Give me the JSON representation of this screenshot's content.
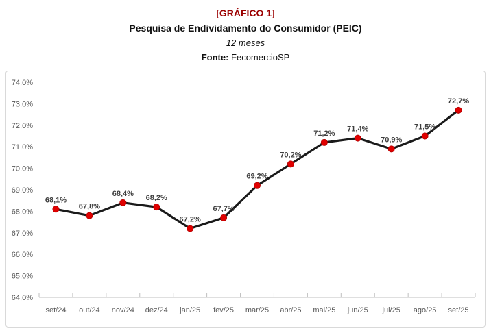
{
  "header": {
    "tag": "[GRÁFICO 1]",
    "title": "Pesquisa de Endividamento do Consumidor (PEIC)",
    "subtitle": "12 meses",
    "source_label": "Fonte:",
    "source_value": " FecomercioSP"
  },
  "chart_data": {
    "type": "line",
    "title": "Pesquisa de Endividamento do Consumidor (PEIC) - 12 meses",
    "categories": [
      "set/24",
      "out/24",
      "nov/24",
      "dez/24",
      "jan/25",
      "fev/25",
      "mar/25",
      "abr/25",
      "mai/25",
      "jun/25",
      "jul/25",
      "ago/25",
      "set/25"
    ],
    "values": [
      68.1,
      67.8,
      68.4,
      68.2,
      67.2,
      67.7,
      69.2,
      70.2,
      71.2,
      71.4,
      70.9,
      71.5,
      72.7
    ],
    "point_labels": [
      "68,1%",
      "67,8%",
      "68,4%",
      "68,2%",
      "67,2%",
      "67,7%",
      "69,2%",
      "70,2%",
      "71,2%",
      "71,4%",
      "70,9%",
      "71,5%",
      "72,7%"
    ],
    "xlabel": "",
    "ylabel": "",
    "ylim": [
      64,
      74
    ],
    "y_tick_step": 1,
    "y_tick_labels": [
      "64,0%",
      "65,0%",
      "66,0%",
      "67,0%",
      "68,0%",
      "69,0%",
      "70,0%",
      "71,0%",
      "72,0%",
      "73,0%",
      "74,0%"
    ],
    "grid": false,
    "legend": "none",
    "colors": {
      "line": "#1a1a1a",
      "marker_fill": "#e00000",
      "marker_stroke": "#b00000",
      "point_label": "#3f3f3f",
      "axis_text": "#595959",
      "axis_line": "#bfbfbf",
      "plot_border": "#d9d9d9"
    }
  }
}
